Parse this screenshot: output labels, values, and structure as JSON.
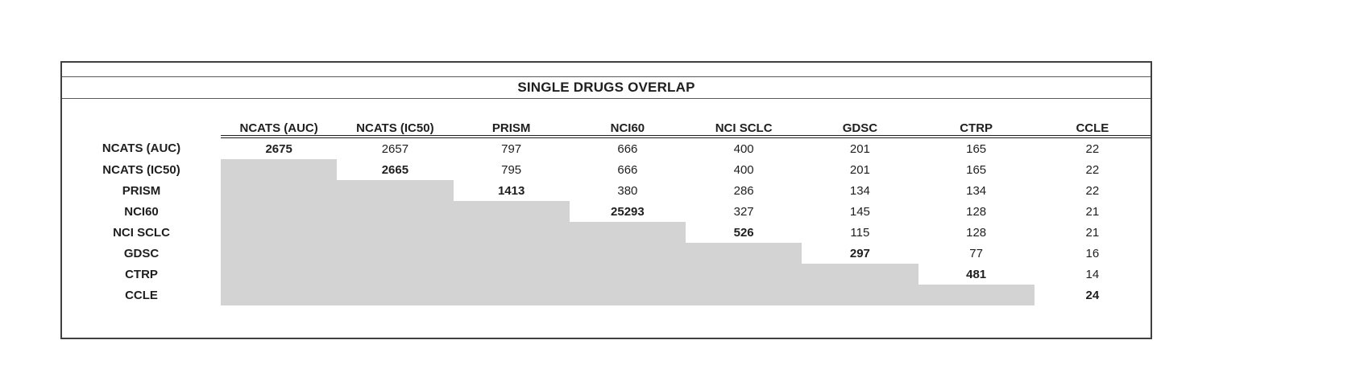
{
  "chart_data": {
    "type": "table",
    "title": "SINGLE DRUGS OVERLAP",
    "layout": "upper-triangular overlap matrix; diagonal values bold; lower triangle shaded gray; double rule under column headers",
    "columns": [
      "NCATS (AUC)",
      "NCATS (IC50)",
      "PRISM",
      "NCI60",
      "NCI SCLC",
      "GDSC",
      "CTRP",
      "CCLE"
    ],
    "rows": [
      {
        "label": "NCATS (AUC)",
        "values": [
          2675,
          2657,
          797,
          666,
          400,
          201,
          165,
          22
        ]
      },
      {
        "label": "NCATS (IC50)",
        "values": [
          null,
          2665,
          795,
          666,
          400,
          201,
          165,
          22
        ]
      },
      {
        "label": "PRISM",
        "values": [
          null,
          null,
          1413,
          380,
          286,
          134,
          134,
          22
        ]
      },
      {
        "label": "NCI60",
        "values": [
          null,
          null,
          null,
          25293,
          327,
          145,
          128,
          21
        ]
      },
      {
        "label": "NCI SCLC",
        "values": [
          null,
          null,
          null,
          null,
          526,
          115,
          128,
          21
        ]
      },
      {
        "label": "GDSC",
        "values": [
          null,
          null,
          null,
          null,
          null,
          297,
          77,
          16
        ]
      },
      {
        "label": "CTRP",
        "values": [
          null,
          null,
          null,
          null,
          null,
          null,
          481,
          14
        ]
      },
      {
        "label": "CCLE",
        "values": [
          null,
          null,
          null,
          null,
          null,
          null,
          null,
          24
        ]
      }
    ]
  },
  "colors": {
    "shaded_cell": "#d3d3d3",
    "border_outer": "#404040",
    "border_inner": "#595959",
    "text": "#1f1f1f",
    "background": "#ffffff"
  }
}
